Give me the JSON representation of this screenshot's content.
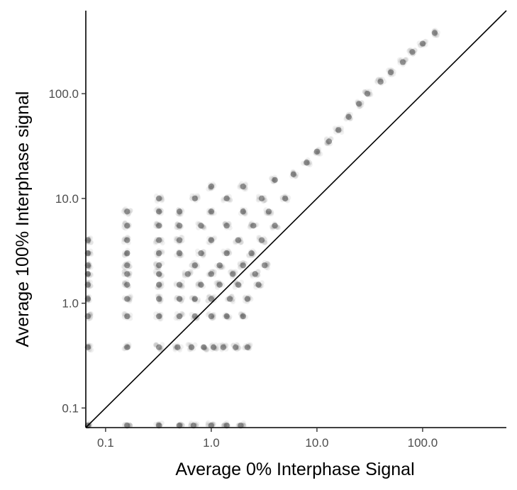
{
  "chart_data": {
    "type": "scatter",
    "title": "",
    "xlabel": "Average 0% Interphase Signal",
    "ylabel": "Average 100% Interphase signal",
    "x_scale": "log10",
    "y_scale": "log10",
    "xlim": [
      0.065,
      620
    ],
    "ylim": [
      0.065,
      620
    ],
    "x_ticks": [
      0.1,
      1.0,
      10.0,
      100.0
    ],
    "x_tick_labels": [
      "0.1",
      "1.0",
      "10.0",
      "100.0"
    ],
    "y_ticks": [
      0.1,
      1.0,
      10.0,
      100.0
    ],
    "y_tick_labels": [
      "0.1",
      "1.0",
      "10.0",
      "100.0"
    ],
    "grid": false,
    "legend": "none",
    "reference_line": {
      "type": "identity",
      "slope": 1,
      "intercept": 0,
      "color": "#000000"
    },
    "point_color": "#4d4d4d",
    "point_alpha": 0.08,
    "series": [
      {
        "points": [
          [
            0.068,
            0.068
          ],
          [
            0.16,
            0.068
          ],
          [
            0.32,
            0.068
          ],
          [
            0.5,
            0.068
          ],
          [
            0.68,
            0.068
          ],
          [
            1.0,
            0.068
          ],
          [
            1.4,
            0.068
          ],
          [
            1.9,
            0.068
          ],
          [
            0.068,
            0.38
          ],
          [
            0.16,
            0.38
          ],
          [
            0.32,
            0.38
          ],
          [
            0.48,
            0.38
          ],
          [
            0.65,
            0.38
          ],
          [
            0.85,
            0.38
          ],
          [
            1.05,
            0.38
          ],
          [
            1.3,
            0.38
          ],
          [
            1.7,
            0.38
          ],
          [
            2.2,
            0.38
          ],
          [
            0.068,
            0.75
          ],
          [
            0.16,
            0.75
          ],
          [
            0.32,
            0.75
          ],
          [
            0.5,
            0.75
          ],
          [
            0.7,
            0.75
          ],
          [
            1.0,
            0.75
          ],
          [
            1.4,
            0.75
          ],
          [
            2.0,
            0.75
          ],
          [
            0.068,
            1.1
          ],
          [
            0.16,
            1.1
          ],
          [
            0.32,
            1.1
          ],
          [
            0.5,
            1.1
          ],
          [
            0.7,
            1.1
          ],
          [
            1.0,
            1.1
          ],
          [
            1.5,
            1.1
          ],
          [
            2.2,
            1.1
          ],
          [
            0.068,
            1.5
          ],
          [
            0.16,
            1.5
          ],
          [
            0.32,
            1.5
          ],
          [
            0.5,
            1.5
          ],
          [
            0.8,
            1.5
          ],
          [
            1.2,
            1.5
          ],
          [
            1.8,
            1.5
          ],
          [
            2.8,
            1.5
          ],
          [
            0.068,
            1.9
          ],
          [
            0.16,
            1.9
          ],
          [
            0.32,
            1.9
          ],
          [
            0.6,
            1.9
          ],
          [
            1.0,
            1.9
          ],
          [
            1.6,
            1.9
          ],
          [
            2.6,
            1.9
          ],
          [
            0.068,
            2.3
          ],
          [
            0.16,
            2.3
          ],
          [
            0.32,
            2.3
          ],
          [
            0.7,
            2.3
          ],
          [
            1.2,
            2.3
          ],
          [
            2.0,
            2.3
          ],
          [
            3.2,
            2.3
          ],
          [
            0.068,
            3.0
          ],
          [
            0.16,
            3.0
          ],
          [
            0.32,
            3.0
          ],
          [
            0.5,
            3.0
          ],
          [
            0.8,
            3.0
          ],
          [
            1.4,
            3.0
          ],
          [
            2.4,
            3.0
          ],
          [
            0.068,
            4.0
          ],
          [
            0.16,
            4.0
          ],
          [
            0.32,
            4.0
          ],
          [
            0.5,
            4.0
          ],
          [
            1.0,
            4.0
          ],
          [
            1.8,
            4.0
          ],
          [
            3.0,
            4.0
          ],
          [
            0.16,
            5.5
          ],
          [
            0.32,
            5.5
          ],
          [
            0.5,
            5.5
          ],
          [
            0.8,
            5.5
          ],
          [
            1.4,
            5.5
          ],
          [
            2.5,
            5.5
          ],
          [
            4.0,
            5.5
          ],
          [
            0.16,
            7.5
          ],
          [
            0.32,
            7.5
          ],
          [
            0.5,
            7.5
          ],
          [
            1.0,
            7.5
          ],
          [
            2.0,
            7.5
          ],
          [
            3.5,
            7.5
          ],
          [
            0.32,
            10.0
          ],
          [
            0.7,
            10.0
          ],
          [
            1.4,
            10.0
          ],
          [
            3.0,
            10.0
          ],
          [
            5.0,
            10.0
          ],
          [
            1.0,
            13.0
          ],
          [
            2.0,
            13.0
          ],
          [
            4.0,
            15.0
          ],
          [
            6.0,
            17.0
          ],
          [
            8.0,
            22.0
          ],
          [
            10.0,
            28.0
          ],
          [
            13.0,
            35.0
          ],
          [
            16.0,
            45.0
          ],
          [
            20.0,
            60.0
          ],
          [
            25.0,
            80.0
          ],
          [
            30.0,
            100.0
          ],
          [
            40.0,
            130.0
          ],
          [
            50.0,
            160.0
          ],
          [
            65.0,
            200.0
          ],
          [
            80.0,
            250.0
          ],
          [
            100.0,
            300.0
          ],
          [
            130.0,
            380.0
          ]
        ]
      }
    ]
  }
}
